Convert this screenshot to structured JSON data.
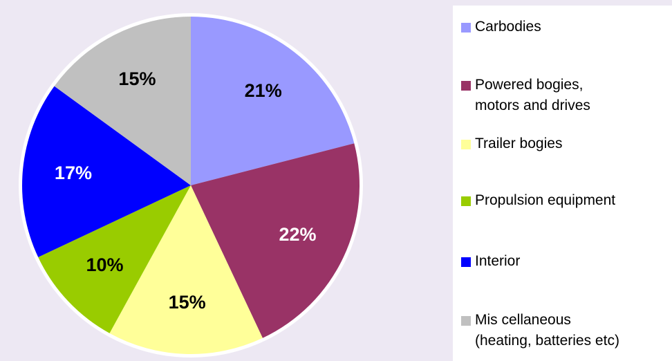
{
  "chart_data": {
    "type": "pie",
    "categories": [
      "Carbodies",
      "Powered bogies,\nmotors and drives",
      "Trailer bogies",
      "Propulsion equipment",
      "Interior",
      "Mis cellaneous\n(heating, batteries etc)"
    ],
    "values": [
      21,
      22,
      15,
      10,
      17,
      15
    ],
    "value_labels": [
      "21%",
      "22%",
      "15%",
      "10%",
      "17%",
      "15%"
    ],
    "colors": [
      "#9999ff",
      "#993366",
      "#ffff99",
      "#99cc00",
      "#0000ff",
      "#c0c0c0"
    ],
    "label_colors": [
      "#000000",
      "#ffffff",
      "#000000",
      "#000000",
      "#ffffff",
      "#000000"
    ],
    "start_angle": 0,
    "direction": "clockwise",
    "legend": "right"
  }
}
